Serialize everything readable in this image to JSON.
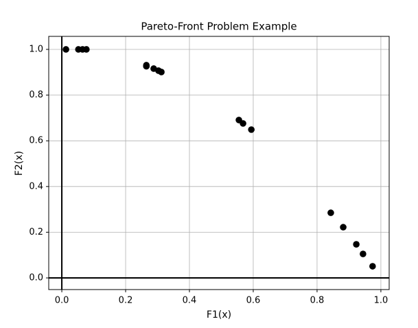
{
  "chart_data": {
    "type": "scatter",
    "title": "Pareto-Front Problem Example",
    "x_label": "F1(x)",
    "y_label": "F2(x)",
    "series": [
      {
        "color": "#000000",
        "x": [
          0.013,
          0.052,
          0.065,
          0.077,
          0.265,
          0.265,
          0.288,
          0.303,
          0.312,
          0.555,
          0.568,
          0.594,
          0.843,
          0.882,
          0.923,
          0.944,
          0.974
        ],
        "values": [
          1.0,
          1.0,
          1.0,
          1.0,
          0.931,
          0.926,
          0.916,
          0.907,
          0.901,
          0.691,
          0.676,
          0.649,
          0.285,
          0.222,
          0.147,
          0.105,
          0.051
        ]
      }
    ],
    "xlim": [
      -0.041,
      1.026
    ],
    "ylim": [
      -0.051,
      1.057
    ],
    "xticks": [
      {
        "value": 0,
        "label": "0.0"
      },
      0.2,
      0.4,
      0.6,
      0.8,
      {
        "value": 1,
        "label": "1.0"
      }
    ],
    "yticks": [
      {
        "value": 0,
        "label": "0.0"
      },
      0.2,
      0.4,
      0.6,
      0.8,
      {
        "value": 1,
        "label": "1.0"
      }
    ],
    "grid": true,
    "hlines": [
      0
    ],
    "vlines": [
      0
    ]
  }
}
